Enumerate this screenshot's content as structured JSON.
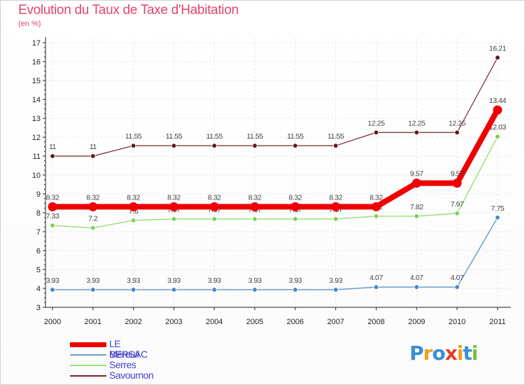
{
  "header": {
    "title": "Evolution du Taux de Taxe d'Habitation",
    "subtitle": "(en %)"
  },
  "logo": {
    "letters": [
      "P",
      "r",
      "o",
      "x",
      "i",
      "t",
      "i"
    ],
    "colors": [
      "#3a8fd6",
      "#f0a020",
      "#3a8fd6",
      "#e0402a",
      "#f0a020",
      "#3a8fd6",
      "#7cbf3a"
    ]
  },
  "chart_data": {
    "type": "line",
    "title": "Evolution du Taux de Taxe d'Habitation",
    "ylabel": "(en %)",
    "xlabel": "",
    "ylim": [
      3,
      17
    ],
    "yticks": [
      "3",
      "4",
      "5",
      "6",
      "7",
      "8",
      "9",
      "10",
      "11",
      "12",
      "13",
      "14",
      "15",
      "16",
      "17"
    ],
    "categories": [
      "2000",
      "2001",
      "2002",
      "2003",
      "2004",
      "2005",
      "2006",
      "2007",
      "2008",
      "2009",
      "2010",
      "2011"
    ],
    "legend_position": "bottom-left",
    "series": [
      {
        "name": "Savournon",
        "color": "#7a2530",
        "marker": "#5c1a20",
        "width": 1.2,
        "values": [
          11,
          11,
          11.55,
          11.55,
          11.55,
          11.55,
          11.55,
          11.55,
          12.25,
          12.25,
          12.25,
          16.21
        ],
        "labels": [
          "11",
          "11",
          "11.55",
          "11.55",
          "11.55",
          "11.55",
          "11.55",
          "11.55",
          "12.25",
          "12.25",
          "12.25",
          "16.21"
        ]
      },
      {
        "name": "Serres",
        "color": "#9ee07a",
        "marker": "#7fcf55",
        "width": 1.5,
        "values": [
          7.33,
          7.2,
          7.6,
          7.67,
          7.67,
          7.67,
          7.67,
          7.67,
          7.82,
          7.82,
          7.97,
          12.03
        ],
        "labels": [
          "7.33",
          "7.2",
          "7.6",
          "7.67",
          "7.67",
          "7.67",
          "7.67",
          "7.67",
          "7.82",
          "7.82",
          "7.97",
          "12.03"
        ]
      },
      {
        "name": "Méreuil",
        "color": "#6a9ed0",
        "marker": "#4a86c4",
        "width": 1.5,
        "values": [
          3.93,
          3.93,
          3.93,
          3.93,
          3.93,
          3.93,
          3.93,
          3.93,
          4.07,
          4.07,
          4.07,
          7.75
        ],
        "labels": [
          "3.93",
          "3.93",
          "3.93",
          "3.93",
          "3.93",
          "3.93",
          "3.93",
          "3.93",
          "4.07",
          "4.07",
          "4.07",
          "7.75"
        ]
      },
      {
        "name": "LE BERSAC",
        "color": "#ee0000",
        "marker": "#ee0000",
        "width": 8,
        "values": [
          8.32,
          8.32,
          8.32,
          8.32,
          8.32,
          8.32,
          8.32,
          8.32,
          8.32,
          9.57,
          9.57,
          13.44
        ],
        "labels": [
          "8.32",
          "8.32",
          "8.32",
          "8.32",
          "8.32",
          "8.32",
          "8.32",
          "8.32",
          "8.32",
          "9.57",
          "9.57",
          "13.44"
        ]
      }
    ],
    "legend": [
      {
        "name": "LE BERSAC",
        "color": "#ee0000",
        "text_color": "#4444cc",
        "width": 7
      },
      {
        "name": "Méreuil",
        "color": "#6a9ed0",
        "text_color": "#4444cc",
        "width": 2
      },
      {
        "name": "Serres",
        "color": "#9ee07a",
        "text_color": "#4444cc",
        "width": 2
      },
      {
        "name": "Savournon",
        "color": "#7a2530",
        "text_color": "#4444cc",
        "width": 2
      }
    ]
  }
}
